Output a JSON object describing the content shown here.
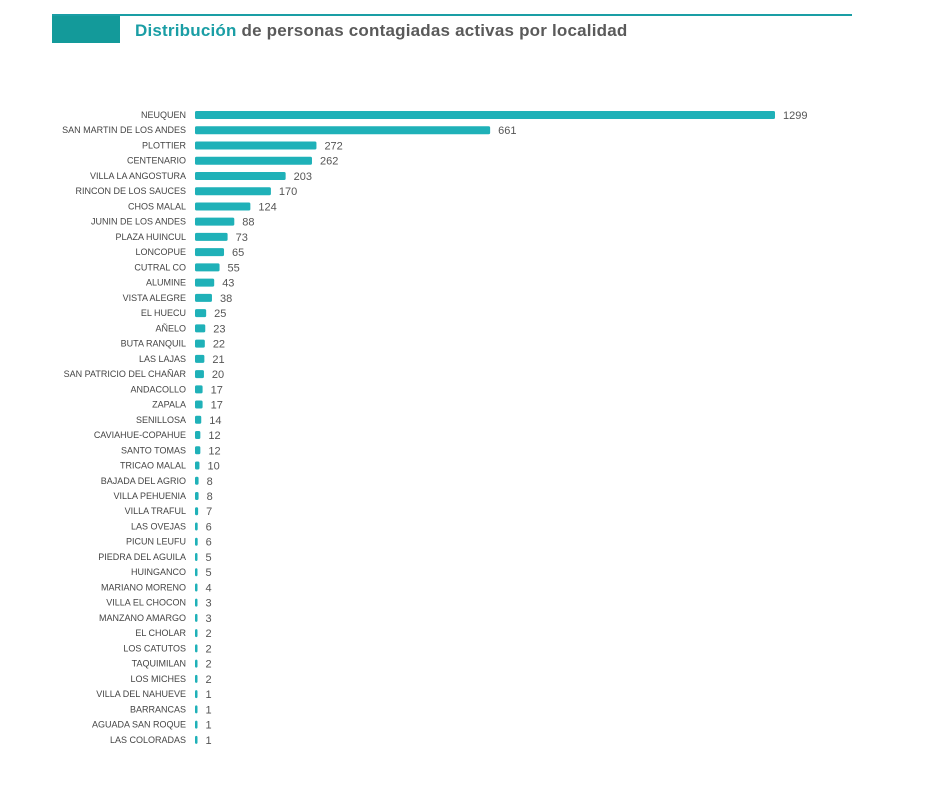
{
  "chart_data": {
    "type": "bar",
    "orientation": "horizontal",
    "title_highlight": "Distribución",
    "title_rest": " de personas contagiadas activas por localidad",
    "bar_color": "#1fb1b8",
    "highlight_color": "#1a9ea5",
    "categories": [
      "NEUQUEN",
      "SAN MARTIN DE LOS ANDES",
      "PLOTTIER",
      "CENTENARIO",
      "VILLA LA ANGOSTURA",
      "RINCON DE LOS SAUCES",
      "CHOS MALAL",
      "JUNIN DE LOS ANDES",
      "PLAZA HUINCUL",
      "LONCOPUE",
      "CUTRAL CO",
      "ALUMINE",
      "VISTA ALEGRE",
      "EL HUECU",
      "AÑELO",
      "BUTA RANQUIL",
      "LAS LAJAS",
      "SAN PATRICIO DEL CHAÑAR",
      "ANDACOLLO",
      "ZAPALA",
      "SENILLOSA",
      "CAVIAHUE-COPAHUE",
      "SANTO TOMAS",
      "TRICAO MALAL",
      "BAJADA DEL AGRIO",
      "VILLA PEHUENIA",
      "VILLA TRAFUL",
      "LAS OVEJAS",
      "PICUN LEUFU",
      "PIEDRA DEL AGUILA",
      "HUINGANCO",
      "MARIANO MORENO",
      "VILLA EL CHOCON",
      "MANZANO AMARGO",
      "EL CHOLAR",
      "LOS CATUTOS",
      "TAQUIMILAN",
      "LOS MICHES",
      "VILLA DEL NAHUEVE",
      "BARRANCAS",
      "AGUADA SAN ROQUE",
      "LAS COLORADAS"
    ],
    "values": [
      1299,
      661,
      272,
      262,
      203,
      170,
      124,
      88,
      73,
      65,
      55,
      43,
      38,
      25,
      23,
      22,
      21,
      20,
      17,
      17,
      14,
      12,
      12,
      10,
      8,
      8,
      7,
      6,
      6,
      5,
      5,
      4,
      3,
      3,
      2,
      2,
      2,
      2,
      1,
      1,
      1,
      1
    ],
    "xlim": [
      0,
      1299
    ],
    "grid": false,
    "legend": "none"
  }
}
